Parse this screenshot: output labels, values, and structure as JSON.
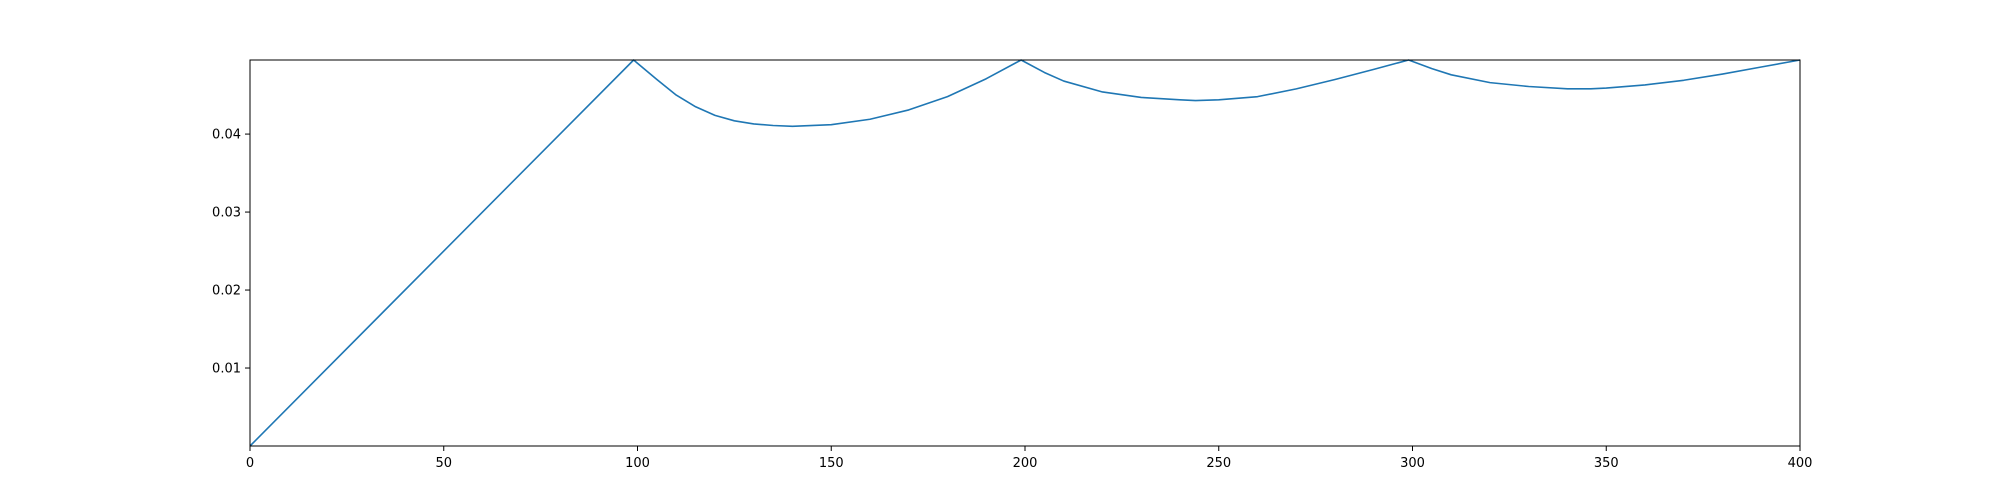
{
  "chart_data": {
    "type": "line",
    "title": "",
    "xlabel": "",
    "ylabel": "",
    "xlim": [
      0,
      400
    ],
    "ylim": [
      0.0,
      0.0495
    ],
    "grid": false,
    "x_ticks": [
      0,
      50,
      100,
      150,
      200,
      250,
      300,
      350,
      400
    ],
    "x_tick_labels": [
      "0",
      "50",
      "100",
      "150",
      "200",
      "250",
      "300",
      "350",
      "400"
    ],
    "y_ticks": [
      0.01,
      0.02,
      0.03,
      0.04
    ],
    "y_tick_labels": [
      "0.01",
      "0.02",
      "0.03",
      "0.04"
    ],
    "series": [
      {
        "color": "#1f77b4",
        "x": [
          0,
          99,
          105,
          110,
          115,
          120,
          125,
          130,
          135,
          140,
          150,
          160,
          170,
          180,
          190,
          199,
          205,
          210,
          220,
          230,
          240,
          244,
          250,
          260,
          270,
          280,
          290,
          299,
          305,
          310,
          320,
          330,
          340,
          346,
          350,
          360,
          370,
          380,
          390,
          400
        ],
        "y": [
          0.0,
          0.0495,
          0.047,
          0.045,
          0.0435,
          0.0424,
          0.0417,
          0.0413,
          0.0411,
          0.041,
          0.0412,
          0.0419,
          0.0431,
          0.0448,
          0.0471,
          0.0495,
          0.0479,
          0.0468,
          0.0454,
          0.0447,
          0.0444,
          0.0443,
          0.0444,
          0.0448,
          0.0458,
          0.047,
          0.0483,
          0.0495,
          0.0484,
          0.0476,
          0.0466,
          0.0461,
          0.0458,
          0.0458,
          0.0459,
          0.0463,
          0.0469,
          0.0477,
          0.0486,
          0.0495
        ]
      }
    ]
  }
}
